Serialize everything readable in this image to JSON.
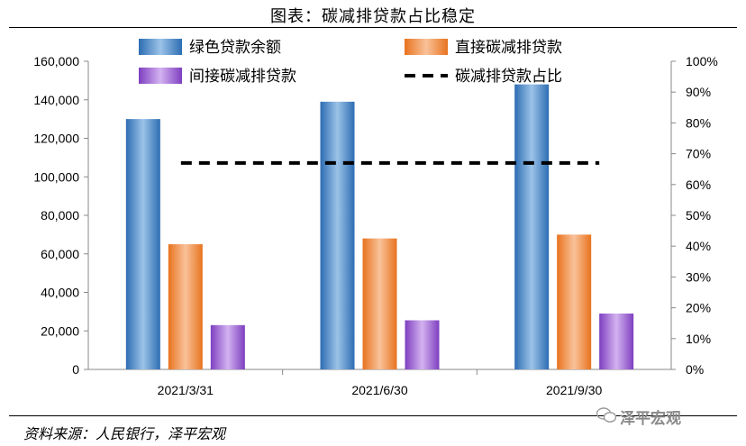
{
  "title": "图表：碳减排贷款占比稳定",
  "source": "资料来源：人民银行，泽平宏观",
  "watermark": "泽平宏观",
  "chart_data": {
    "type": "bar",
    "categories": [
      "2021/3/31",
      "2021/6/30",
      "2021/9/30"
    ],
    "series": [
      {
        "name": "绿色贷款余额",
        "values": [
          130000,
          139000,
          148000
        ],
        "color": "#3f7fbf"
      },
      {
        "name": "直接碳减排贷款",
        "values": [
          65000,
          68000,
          70000
        ],
        "color": "#f0893f"
      },
      {
        "name": "间接碳减排贷款",
        "values": [
          23000,
          25500,
          29000
        ],
        "color": "#9a5fd0"
      }
    ],
    "line_series": {
      "name": "碳减排贷款占比",
      "values": [
        0.67,
        0.67,
        0.67
      ],
      "color": "#000000",
      "axis": "right"
    },
    "y_left": {
      "min": 0,
      "max": 160000,
      "ticks": [
        "0",
        "20,000",
        "40,000",
        "60,000",
        "80,000",
        "100,000",
        "120,000",
        "140,000",
        "160,000"
      ]
    },
    "y_right": {
      "min": 0,
      "max": 1,
      "ticks": [
        "0%",
        "10%",
        "20%",
        "30%",
        "40%",
        "50%",
        "60%",
        "70%",
        "80%",
        "90%",
        "100%"
      ]
    },
    "legend_position": "top",
    "grid": false
  }
}
